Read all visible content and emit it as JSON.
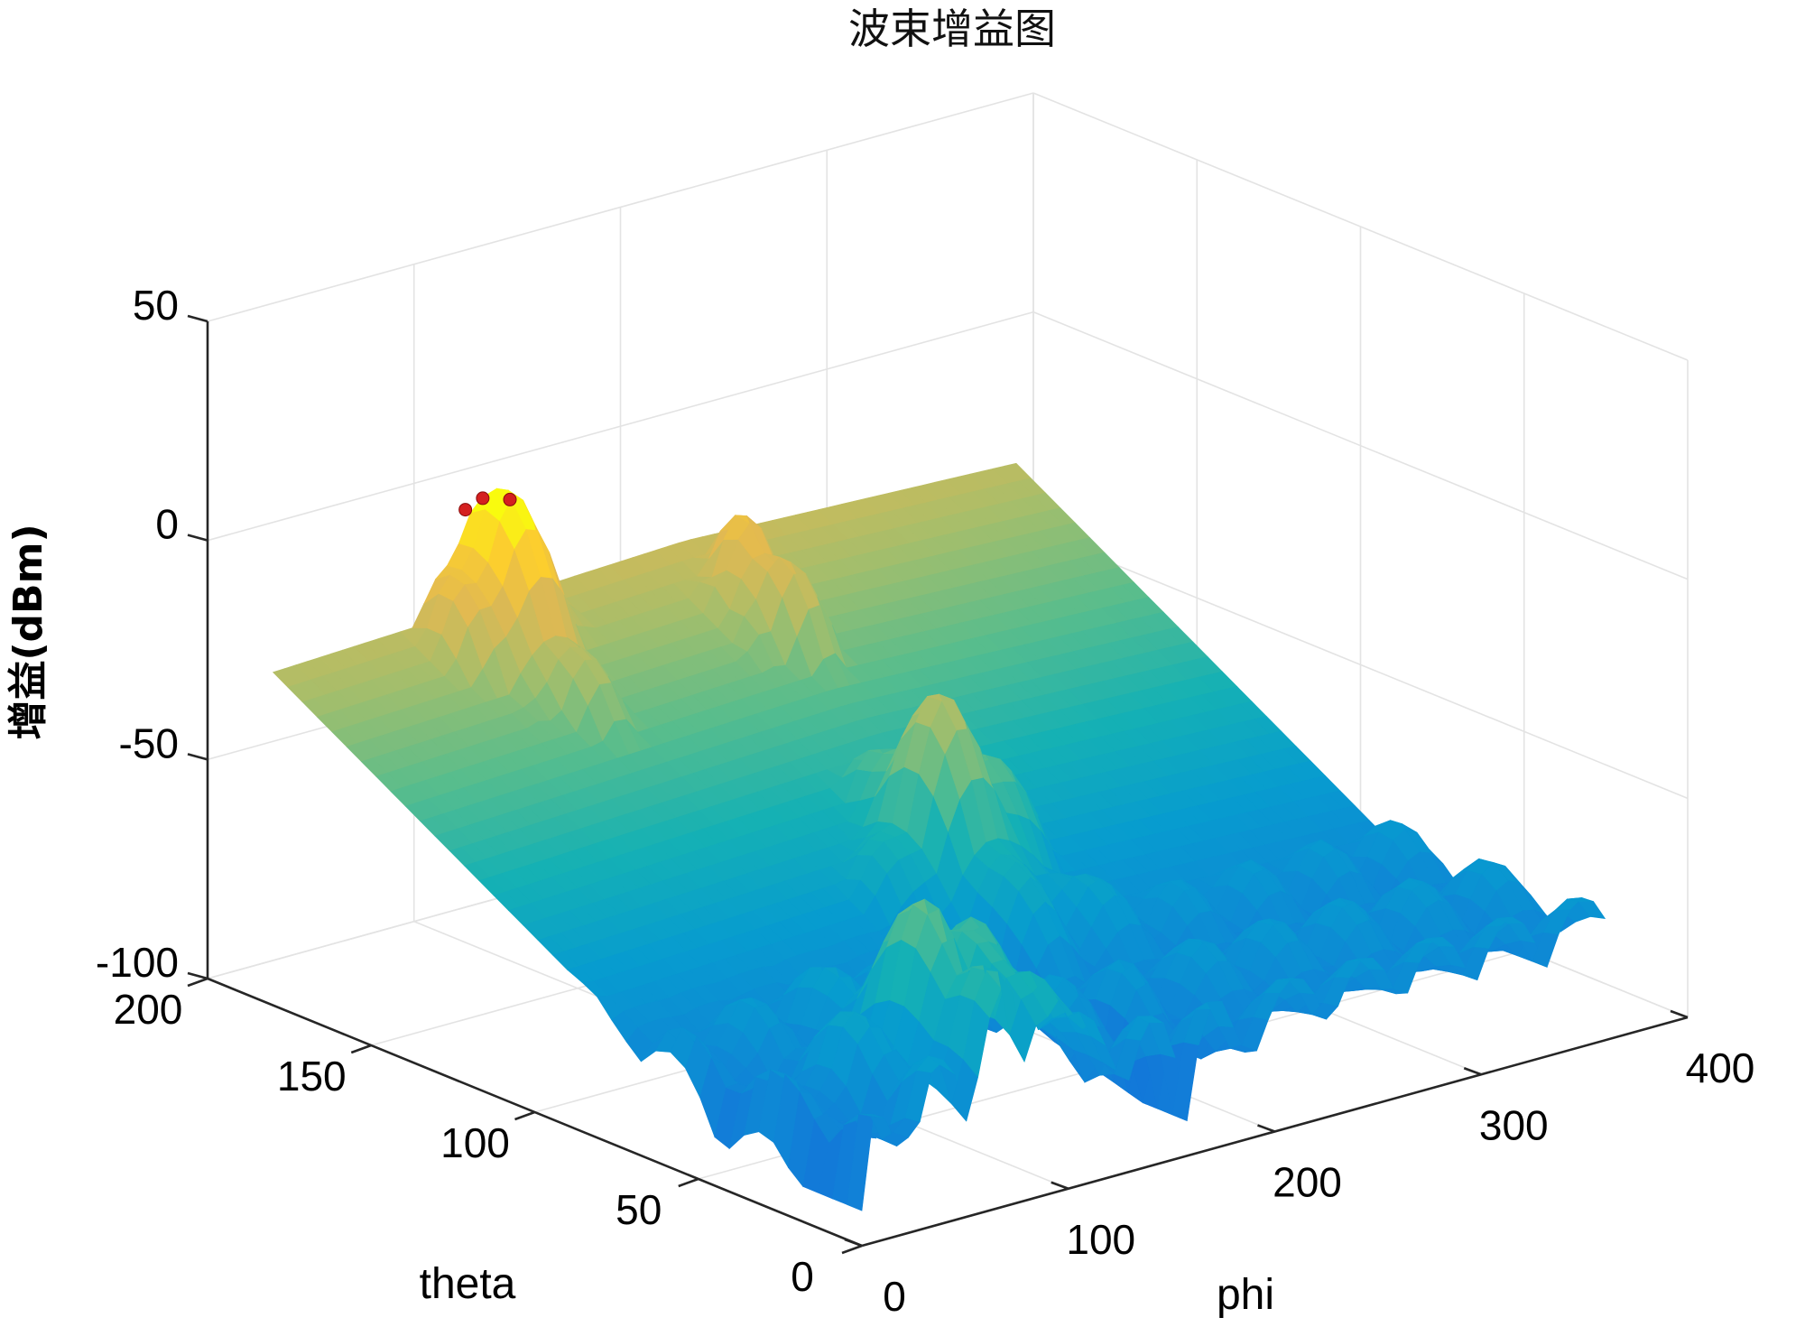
{
  "chart_data": {
    "type": "surface3d",
    "title": "波束增益图",
    "xlabel": "phi",
    "ylabel": "theta",
    "zlabel": "增益(dBm)",
    "xlim": [
      0,
      400
    ],
    "ylim": [
      0,
      200
    ],
    "zlim": [
      -100,
      50
    ],
    "x_ticks": [
      "0",
      "100",
      "200",
      "300",
      "400"
    ],
    "y_ticks": [
      "0",
      "50",
      "100",
      "150",
      "200"
    ],
    "z_ticks": [
      "-100",
      "-50",
      "0",
      "50"
    ],
    "grid": true,
    "colormap": "parula",
    "surface_extent": {
      "phi": [
        0,
        360
      ],
      "theta": [
        0,
        180
      ]
    },
    "main_beam": {
      "phi": 100,
      "theta": 180,
      "peak_gain_dBm": 3
    },
    "secondary_lobes": [
      {
        "phi": 80,
        "theta": 20,
        "gain_dBm": -38
      },
      {
        "phi": 200,
        "theta": 160,
        "gain_dBm": -8
      },
      {
        "phi": 180,
        "theta": 90,
        "gain_dBm": -28
      }
    ],
    "marked_points": [
      {
        "phi": 90,
        "theta": 178,
        "gain_dBm": 2
      },
      {
        "phi": 100,
        "theta": 179,
        "gain_dBm": 3
      },
      {
        "phi": 110,
        "theta": 177,
        "gain_dBm": 2
      }
    ],
    "colors": {
      "marker": "#d42020",
      "grid": "#e3e3e3",
      "axis": "#262626"
    }
  }
}
